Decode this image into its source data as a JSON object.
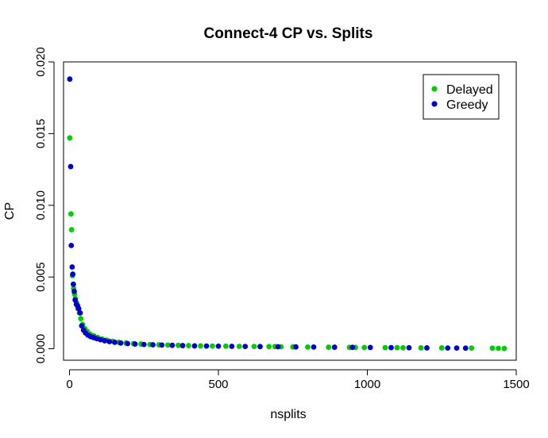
{
  "chart_data": {
    "type": "scatter",
    "title": "Connect-4 CP vs. Splits",
    "xlabel": "nsplits",
    "ylabel": "CP",
    "xlim": [
      -20,
      1500
    ],
    "ylim": [
      -0.0008,
      0.02
    ],
    "xticks": [
      0,
      500,
      1000,
      1500
    ],
    "xtick_labels": [
      "0",
      "500",
      "1000",
      "1500"
    ],
    "yticks": [
      0.0,
      0.005,
      0.01,
      0.015,
      0.02
    ],
    "ytick_labels": [
      "0.000",
      "0.005",
      "0.010",
      "0.015",
      "0.020"
    ],
    "legend_position": "top-right",
    "series": [
      {
        "name": "Delayed",
        "color": "#00cc00",
        "x": [
          1,
          5,
          7,
          10,
          14,
          17,
          20,
          24,
          28,
          33,
          38,
          44,
          52,
          60,
          70,
          82,
          95,
          110,
          125,
          145,
          165,
          190,
          215,
          240,
          270,
          300,
          330,
          365,
          400,
          440,
          480,
          525,
          570,
          620,
          670,
          690,
          710,
          750,
          800,
          870,
          940,
          960,
          990,
          1060,
          1100,
          1120,
          1180,
          1250,
          1350,
          1420,
          1440,
          1460
        ],
        "y": [
          0.0147,
          0.0094,
          0.0083,
          0.0051,
          0.0042,
          0.0038,
          0.0035,
          0.0032,
          0.0028,
          0.0025,
          0.0021,
          0.0017,
          0.0014,
          0.0012,
          0.001,
          0.0009,
          0.00078,
          0.00068,
          0.0006,
          0.00052,
          0.00045,
          0.0004,
          0.00036,
          0.00033,
          0.0003,
          0.00028,
          0.00026,
          0.00024,
          0.00022,
          0.0002,
          0.00019,
          0.00018,
          0.00017,
          0.00016,
          0.00015,
          0.00015,
          0.00014,
          0.00013,
          0.00012,
          0.00011,
          0.0001,
          0.0001,
          9e-05,
          8e-05,
          8e-05,
          7e-05,
          6e-05,
          6e-05,
          5e-05,
          4e-05,
          3e-05,
          2e-05
        ]
      },
      {
        "name": "Greedy",
        "color": "#0000cc",
        "x": [
          1,
          4,
          6,
          9,
          11,
          13,
          16,
          19,
          23,
          27,
          31,
          36,
          41,
          47,
          54,
          62,
          71,
          81,
          92,
          104,
          118,
          134,
          152,
          172,
          195,
          220,
          250,
          280,
          310,
          345,
          380,
          420,
          460,
          500,
          545,
          590,
          640,
          700,
          760,
          820,
          890,
          950,
          1010,
          1080,
          1140,
          1200,
          1270,
          1300,
          1330
        ],
        "y": [
          0.0188,
          0.0127,
          0.0072,
          0.0057,
          0.0052,
          0.0045,
          0.004,
          0.0034,
          0.0031,
          0.003,
          0.0028,
          0.0025,
          0.0016,
          0.0013,
          0.0011,
          0.00095,
          0.00085,
          0.00078,
          0.0007,
          0.00063,
          0.00056,
          0.0005,
          0.00045,
          0.0004,
          0.00036,
          0.00033,
          0.0003,
          0.00028,
          0.00026,
          0.00024,
          0.00022,
          0.0002,
          0.00019,
          0.00018,
          0.00017,
          0.00016,
          0.00015,
          0.00014,
          0.00013,
          0.00012,
          0.00011,
          0.0001,
          9e-05,
          8e-05,
          7e-05,
          6e-05,
          5e-05,
          5e-05,
          4e-05
        ]
      }
    ]
  }
}
